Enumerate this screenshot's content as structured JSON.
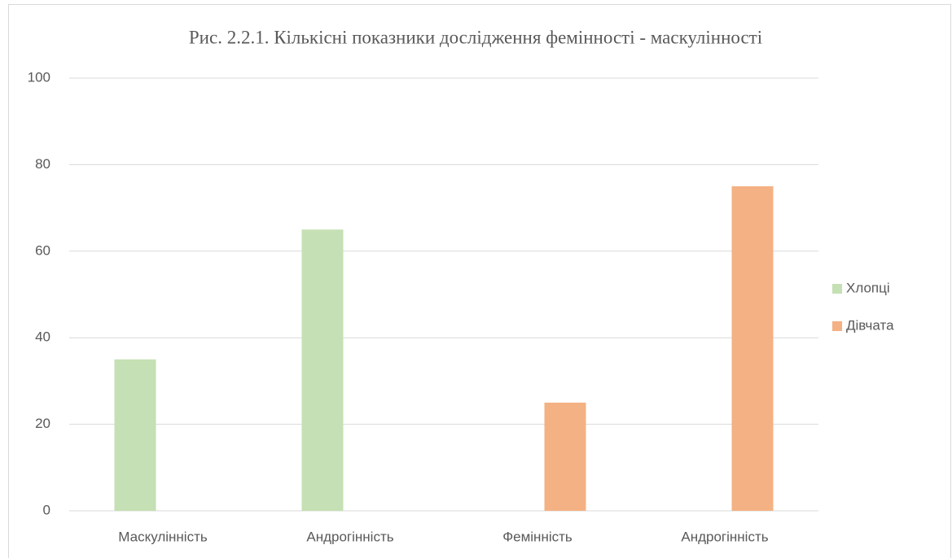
{
  "chart_data": {
    "type": "bar",
    "title": "Рис. 2.2.1. Кількісні показники дослідження фемінності - маскулінності",
    "categories": [
      "Маскулінність",
      "Андрогінність",
      "Фемінність",
      "Андрогінність"
    ],
    "series": [
      {
        "name": "Хлопці",
        "color": "#c5e0b4",
        "values": [
          35,
          65,
          null,
          null
        ]
      },
      {
        "name": "Дівчата",
        "color": "#f4b183",
        "values": [
          null,
          null,
          25,
          75
        ]
      }
    ],
    "ylim": [
      0,
      100
    ],
    "yticks": [
      0,
      20,
      40,
      60,
      80,
      100
    ],
    "grid": true,
    "legend": "right"
  }
}
